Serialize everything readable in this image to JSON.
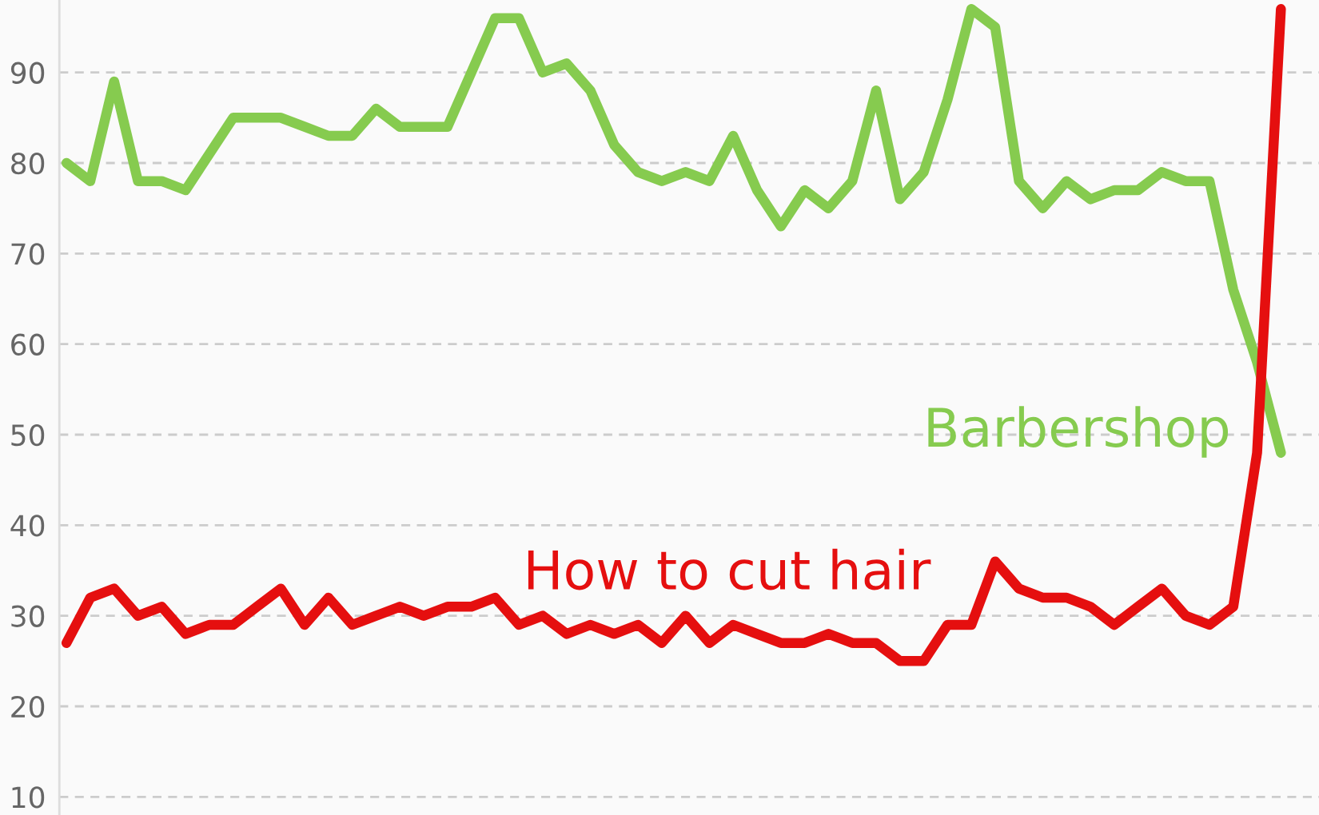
{
  "chart_data": {
    "type": "line",
    "categories": [
      null,
      null,
      null,
      null,
      null,
      null,
      null,
      null,
      null,
      null,
      null,
      null,
      null,
      null,
      null,
      null,
      null,
      null,
      null,
      null,
      null,
      null,
      null,
      null,
      null,
      null,
      null,
      null,
      null,
      null,
      null,
      null,
      null,
      null,
      null,
      null,
      null,
      null,
      null,
      null,
      null,
      null,
      null,
      null,
      null,
      null,
      null,
      null,
      null,
      null,
      null,
      null
    ],
    "series": [
      {
        "name": "Barbershop",
        "color": "#86cb4f",
        "values": [
          80,
          78,
          89,
          78,
          78,
          77,
          81,
          85,
          85,
          85,
          84,
          83,
          83,
          86,
          84,
          84,
          84,
          90,
          96,
          96,
          90,
          91,
          88,
          82,
          79,
          78,
          79,
          78,
          83,
          77,
          73,
          77,
          75,
          78,
          88,
          76,
          79,
          87,
          97,
          95,
          78,
          75,
          78,
          76,
          77,
          77,
          79,
          78,
          78,
          66,
          58,
          48
        ]
      },
      {
        "name": "How to cut hair",
        "color": "#e50f0f",
        "values": [
          27,
          32,
          33,
          30,
          31,
          28,
          29,
          29,
          31,
          33,
          29,
          32,
          29,
          30,
          31,
          30,
          31,
          31,
          32,
          29,
          30,
          28,
          29,
          28,
          29,
          27,
          30,
          27,
          29,
          28,
          27,
          27,
          28,
          27,
          27,
          25,
          25,
          29,
          29,
          36,
          33,
          32,
          32,
          31,
          29,
          31,
          33,
          30,
          29,
          31,
          48,
          97
        ]
      }
    ],
    "ylim": [
      8,
      98
    ],
    "yticks": [
      10,
      20,
      30,
      40,
      50,
      60,
      70,
      80,
      90
    ],
    "grid": "y",
    "tick_labels": "y",
    "legend": false,
    "marker": "none",
    "line_style": "solid"
  }
}
